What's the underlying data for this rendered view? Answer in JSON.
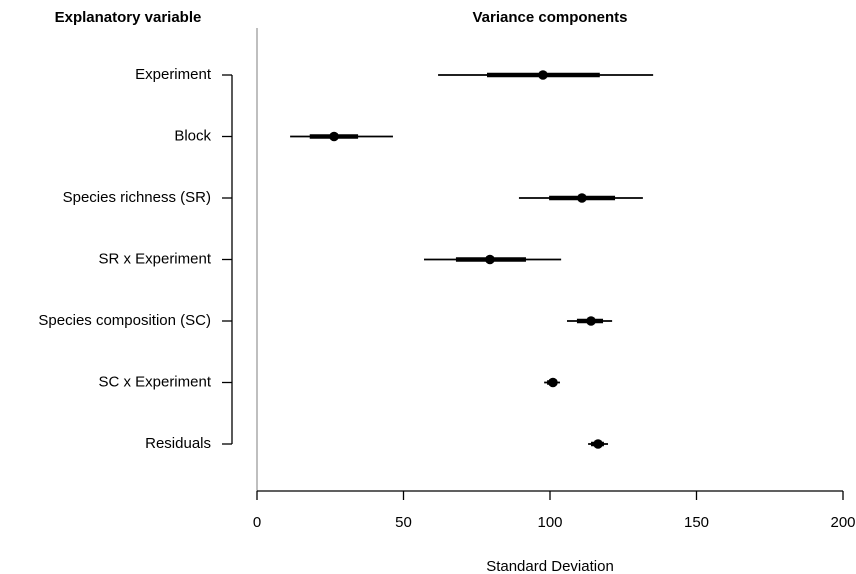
{
  "chart_data": {
    "type": "interval",
    "title": "Variance components",
    "y_label": "Explanatory variable",
    "x_label": "Standard Deviation",
    "categories": [
      "Experiment",
      "Block",
      "Species richness (SR)",
      "SR x Experiment",
      "Species composition (SC)",
      "SC x Experiment",
      "Residuals"
    ],
    "values": [
      97.6,
      26.3,
      110.9,
      79.5,
      114,
      101,
      116.4
    ],
    "ci95": [
      [
        61.8,
        135.2
      ],
      [
        11.3,
        46.4
      ],
      [
        89.4,
        131.7
      ],
      [
        57,
        103.8
      ],
      [
        105.8,
        121.2
      ],
      [
        98,
        103.4
      ],
      [
        113,
        119.8
      ]
    ],
    "ci50": [
      [
        78.5,
        117
      ],
      [
        18,
        34.5
      ],
      [
        99.7,
        122.2
      ],
      [
        67.9,
        91.8
      ],
      [
        109.2,
        118.1
      ],
      [
        99,
        102.4
      ],
      [
        114,
        118.4
      ]
    ],
    "color": "#000000",
    "xlim": [
      0,
      200
    ],
    "xticks": [
      0,
      50,
      100,
      150,
      200
    ]
  }
}
